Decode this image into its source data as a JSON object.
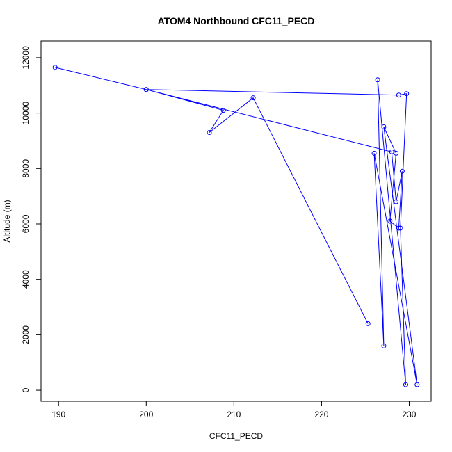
{
  "chart_data": {
    "type": "line",
    "title": "ATOM4 Northbound CFC11_PECD",
    "xlabel": "CFC11_PECD",
    "ylabel": "Altitude (m)",
    "xlim": [
      188,
      232.5
    ],
    "ylim": [
      -400,
      12600
    ],
    "xticks": [
      190,
      200,
      210,
      220,
      230
    ],
    "yticks": [
      0,
      2000,
      4000,
      6000,
      8000,
      10000,
      12000
    ],
    "grid": false,
    "legend": "none",
    "color": "#0000ff",
    "markers": "open-circle",
    "x": [
      189.6,
      200.0,
      228.0,
      228.5,
      229.2,
      228.8,
      227.8,
      228.5,
      227.1,
      230.9,
      226.0,
      227.1,
      226.4,
      229.6,
      229.0,
      229.7,
      228.8,
      200.0,
      208.8,
      207.2,
      212.2,
      225.3
    ],
    "y": [
      11650,
      10850,
      8600,
      6800,
      7900,
      5850,
      6100,
      8550,
      9500,
      200,
      8550,
      1600,
      11200,
      200,
      5850,
      10700,
      10650,
      10850,
      10100,
      9300,
      10550,
      2400
    ]
  }
}
